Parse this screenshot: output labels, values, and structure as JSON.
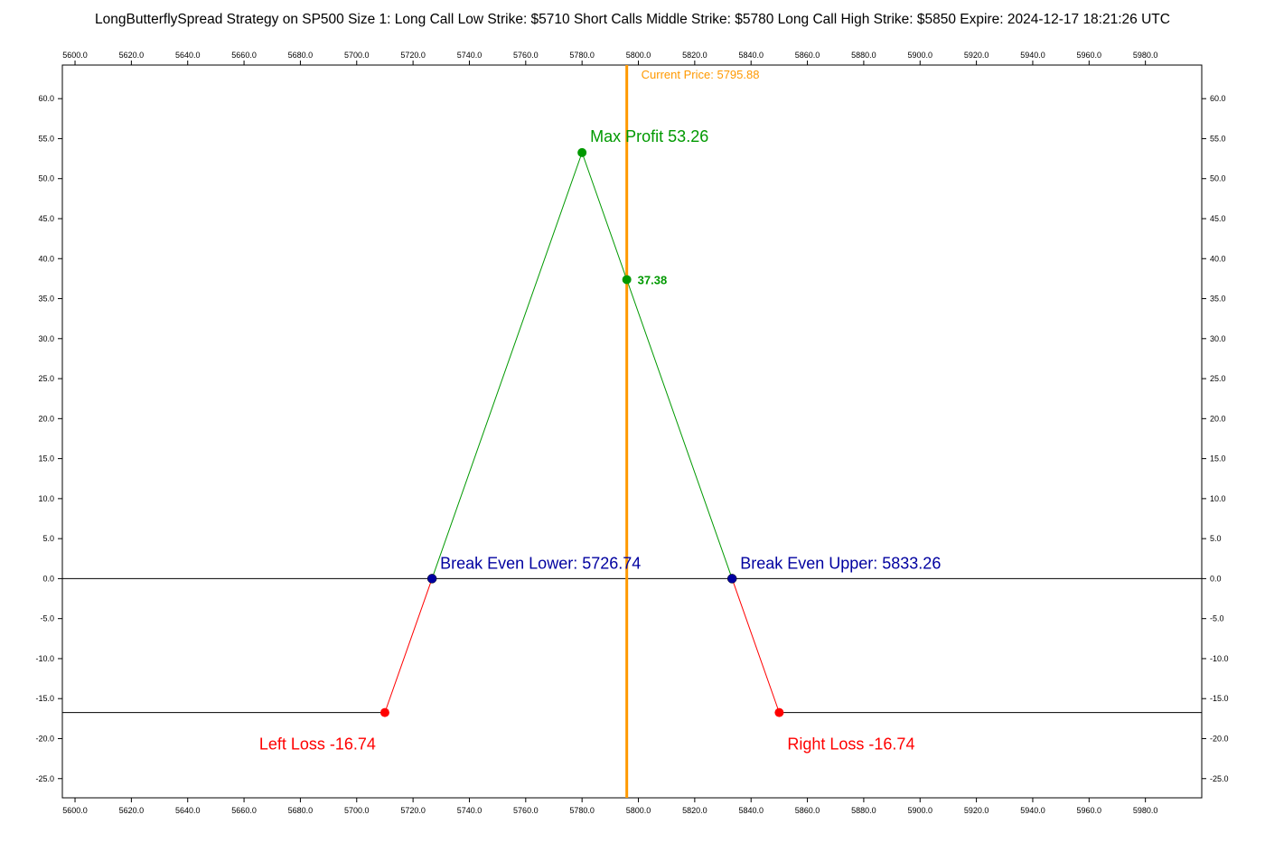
{
  "chart_data": {
    "type": "line",
    "title": "LongButterflySpread Strategy on SP500 Size 1:  Long Call Low Strike: $5710  Short Calls Middle Strike: $5780  Long Call High Strike: $5850  Expire: 2024-12-17 18:21:26 UTC",
    "xlabel": "",
    "ylabel": "",
    "xlim": [
      5595.5,
      6000
    ],
    "ylim": [
      -27.4,
      64.2
    ],
    "x_ticks": [
      5600,
      5620,
      5640,
      5660,
      5680,
      5700,
      5720,
      5740,
      5760,
      5780,
      5800,
      5820,
      5840,
      5860,
      5880,
      5900,
      5920,
      5940,
      5960,
      5980
    ],
    "y_ticks": [
      60,
      55,
      50,
      45,
      40,
      35,
      30,
      25,
      20,
      15,
      10,
      5,
      0,
      -5,
      -10,
      -15,
      -20,
      -25
    ],
    "grid": false,
    "payoff": {
      "x": [
        5595.5,
        5710,
        5726.74,
        5780,
        5833.26,
        5850,
        6000
      ],
      "y": [
        -16.74,
        -16.74,
        0,
        53.26,
        0,
        -16.74,
        -16.74
      ]
    },
    "zero_line": 0,
    "current_price": {
      "x": 5795.88,
      "y": 37.38,
      "label": "Current Price: 5795.88",
      "value_label": "37.38"
    },
    "points": [
      {
        "x": 5780,
        "y": 53.26,
        "label": "Max Profit 53.26",
        "color": "#009900"
      },
      {
        "x": 5726.74,
        "y": 0,
        "label": "Break Even Lower: 5726.74",
        "color": "#0000a0"
      },
      {
        "x": 5833.26,
        "y": 0,
        "label": "Break Even Upper: 5833.26",
        "color": "#0000a0"
      },
      {
        "x": 5710,
        "y": -16.74,
        "label": "Left Loss -16.74",
        "color": "#ff0000"
      },
      {
        "x": 5850,
        "y": -16.74,
        "label": "Right Loss -16.74",
        "color": "#ff0000"
      }
    ],
    "colors": {
      "profit": "#009900",
      "loss": "#ff0000",
      "break_even": "#0000a0",
      "current_price": "#ff9900"
    }
  }
}
